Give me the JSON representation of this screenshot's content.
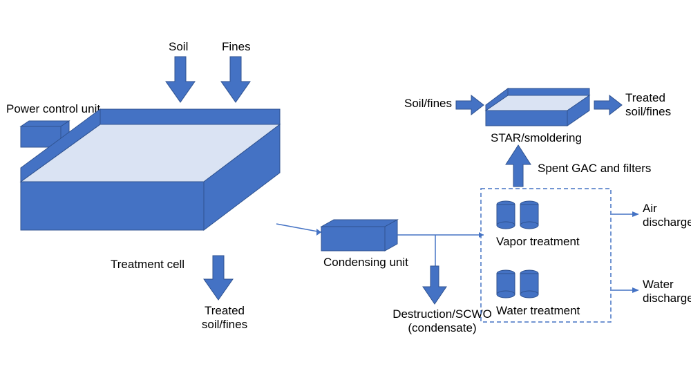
{
  "type": "flowchart",
  "background_color": "#ffffff",
  "shape_fill": "#4472c4",
  "shape_stroke": "#2f528f",
  "shape_stroke_width": 1,
  "pale_fill": "#dae3f3",
  "text_color": "#000000",
  "font_size": 17,
  "dashed_box_stroke": "#4472c4",
  "labels": {
    "soil": "Soil",
    "fines": "Fines",
    "power_control_unit": "Power control unit",
    "treatment_cell": "Treatment cell",
    "treated_soil_fines_a": "Treated\nsoil/fines",
    "condensing_unit": "Condensing unit",
    "destruction_scwo": "Destruction/SCWO\n(condensate)",
    "vapor_treatment": "Vapor treatment",
    "water_treatment": "Water treatment",
    "air_discharge": "Air\ndischarge",
    "water_discharge": "Water\ndischarge",
    "spent_gac": "Spent GAC and filters",
    "soil_fines": "Soil/fines",
    "treated_soil_fines_b": "Treated\nsoil/fines",
    "star_smoldering": "STAR/smoldering"
  }
}
